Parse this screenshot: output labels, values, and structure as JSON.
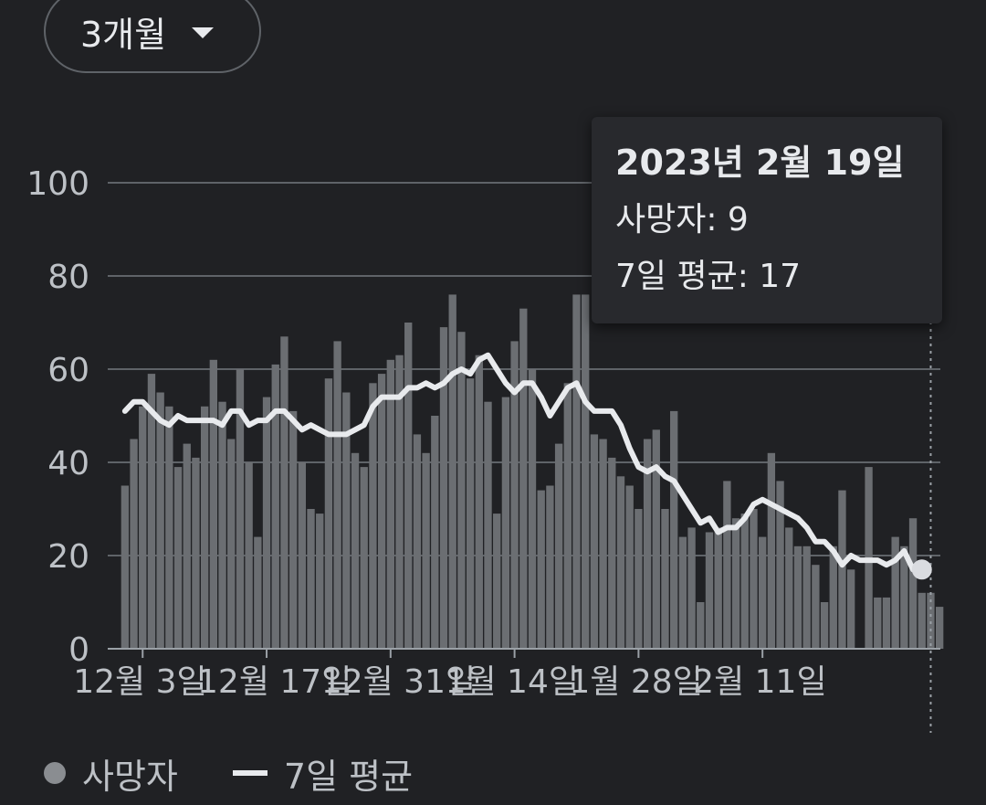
{
  "range_selector": {
    "label": "3개월",
    "icon": "dropdown-triangle-icon"
  },
  "tooltip": {
    "date": "2023년 2월 19일",
    "deaths_label": "사망자: 9",
    "avg_label": "7일 평균: 17"
  },
  "legend": {
    "deaths": "사망자",
    "avg": "7일 평균"
  },
  "colors": {
    "background": "#202124",
    "bar": "#6b6e72",
    "line": "#e8eaed",
    "grid": "#5f6368",
    "text": "#bdc1c6"
  },
  "chart_data": {
    "type": "bar",
    "ylim": [
      0,
      100
    ],
    "yticks": [
      0,
      20,
      40,
      60,
      80,
      100
    ],
    "xtick_labels": [
      "12월 3일",
      "12월 17일",
      "12월 31일",
      "1월 14일",
      "1월 28일",
      "2월 11일"
    ],
    "xtick_days": [
      2,
      16,
      30,
      44,
      58,
      72
    ],
    "grid": true,
    "legend_position": "bottom",
    "series": [
      {
        "name": "사망자",
        "type": "bar",
        "values": [
          35,
          45,
          52,
          59,
          55,
          52,
          39,
          44,
          41,
          52,
          62,
          53,
          45,
          60,
          40,
          24,
          54,
          61,
          67,
          51,
          40,
          30,
          29,
          58,
          66,
          55,
          42,
          39,
          57,
          59,
          62,
          63,
          70,
          46,
          42,
          50,
          69,
          76,
          68,
          58,
          63,
          53,
          29,
          54,
          66,
          73,
          60,
          34,
          35,
          44,
          57,
          76,
          76,
          46,
          45,
          41,
          37,
          35,
          30,
          45,
          47,
          30,
          51,
          24,
          26,
          10,
          25,
          26,
          36,
          28,
          29,
          30,
          24,
          42,
          36,
          26,
          22,
          22,
          18,
          10,
          22,
          34,
          17,
          0,
          39,
          11,
          11,
          24,
          22,
          28,
          12,
          12,
          9
        ]
      },
      {
        "name": "7일 평균",
        "type": "line",
        "values": [
          51,
          53,
          53,
          51,
          49,
          48,
          50,
          49,
          49,
          49,
          49,
          48,
          51,
          51,
          48,
          49,
          49,
          51,
          51,
          49,
          47,
          48,
          47,
          46,
          46,
          46,
          47,
          48,
          52,
          54,
          54,
          54,
          56,
          56,
          57,
          56,
          57,
          59,
          60,
          59,
          62,
          63,
          60,
          57,
          55,
          57,
          57,
          54,
          50,
          53,
          56,
          57,
          53,
          51,
          51,
          51,
          48,
          43,
          39,
          38,
          39,
          37,
          36,
          33,
          30,
          27,
          28,
          25,
          26,
          26,
          28,
          31,
          32,
          31,
          30,
          29,
          28,
          26,
          23,
          23,
          21,
          18,
          20,
          19,
          19,
          19,
          18,
          19,
          21,
          17,
          17
        ]
      }
    ]
  }
}
